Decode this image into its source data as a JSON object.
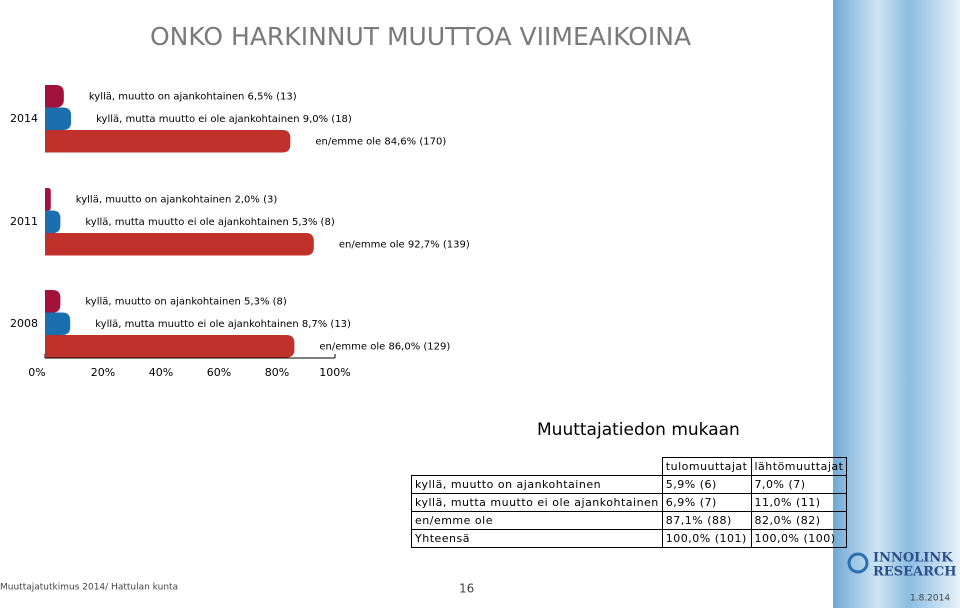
{
  "chart_data": {
    "type": "bar",
    "orientation": "horizontal",
    "title": "ONKO HARKINNUT MUUTTOA VIIMEAIKOINA",
    "categories": [
      "2014",
      "2011",
      "2008"
    ],
    "series": [
      {
        "color": "#a3123d",
        "values": [
          6.5,
          2.0,
          5.3
        ],
        "value_labels": [
          "kyllä, muutto on ajankohtainen 6,5% (13)",
          "kyllä, muutto on ajankohtainen 2,0% (3)",
          "kyllä, muutto on ajankohtainen 5,3% (8)"
        ]
      },
      {
        "color": "#1b6faf",
        "values": [
          9.0,
          5.3,
          8.7
        ],
        "value_labels": [
          "kyllä, mutta muutto ei ole ajankohtainen 9,0% (18)",
          "kyllä, mutta muutto ei ole ajankohtainen 5,3% (8)",
          "kyllä, mutta muutto ei ole ajankohtainen 8,7% (13)"
        ]
      },
      {
        "color": "#c1312b",
        "values": [
          84.6,
          92.7,
          86.0
        ],
        "value_labels": [
          "en/emme ole 84,6% (170)",
          "en/emme ole 92,7% (139)",
          "en/emme ole 86,0% (129)"
        ]
      }
    ],
    "xlim": [
      0,
      100
    ],
    "xticks": [
      {
        "value": 0,
        "label": "0%"
      },
      {
        "value": 20,
        "label": "20%"
      },
      {
        "value": 40,
        "label": "40%"
      },
      {
        "value": 60,
        "label": "60%"
      },
      {
        "value": 80,
        "label": "80%"
      },
      {
        "value": 100,
        "label": "100%"
      }
    ]
  },
  "table": {
    "title": "Muuttajatiedon mukaan",
    "header": [
      "tulomuuttajat",
      "lähtömuuttajat"
    ],
    "rows": [
      [
        "kyllä, muutto on ajankohtainen",
        "5,9% (6)",
        "7,0% (7)"
      ],
      [
        "kyllä, mutta muutto ei ole ajankohtainen",
        "6,9% (7)",
        "11,0% (11)"
      ],
      [
        "en/emme ole",
        "87,1% (88)",
        "82,0% (82)"
      ],
      [
        "Yhteensä",
        "100,0% (101)",
        "100,0% (100)"
      ]
    ]
  },
  "footer": {
    "source": "Muuttajatutkimus 2014/ Hattulan kunta",
    "page": "16",
    "date": "1.8.2014",
    "logo": [
      "INNOLINK",
      "RESEARCH"
    ]
  }
}
